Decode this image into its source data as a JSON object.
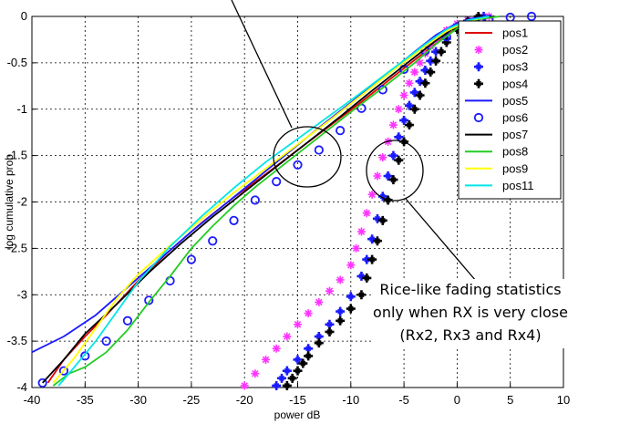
{
  "chart_data": {
    "type": "line",
    "xlabel": "power dB",
    "ylabel": "log cumulative prob",
    "xlim": [
      -40,
      10
    ],
    "ylim": [
      -4,
      0
    ],
    "xticks": [
      "-40",
      "-35",
      "-30",
      "-25",
      "-20",
      "-15",
      "-10",
      "-5",
      "0",
      "5",
      "10"
    ],
    "yticks": [
      "0",
      "-0.5",
      "-1",
      "-1.5",
      "-2",
      "-2.5",
      "-3",
      "-3.5",
      "-4"
    ],
    "grid": true,
    "legend_position": "top-right",
    "series": [
      {
        "name": "pos1",
        "style": "line",
        "marker": "",
        "color": "#e00000",
        "x": [
          -38.5,
          -37,
          -35,
          -33,
          -30,
          -27,
          -24,
          -21,
          -18,
          -15,
          -12,
          -9,
          -6,
          -3,
          -1,
          1,
          2.5,
          3.5
        ],
        "y": [
          -3.95,
          -3.7,
          -3.45,
          -3.22,
          -2.85,
          -2.52,
          -2.22,
          -1.95,
          -1.7,
          -1.44,
          -1.18,
          -0.92,
          -0.65,
          -0.38,
          -0.2,
          -0.06,
          -0.02,
          0
        ]
      },
      {
        "name": "pos2",
        "style": "marker",
        "marker": "*",
        "color": "#ff33ff",
        "x": [
          -20,
          -19,
          -18,
          -17,
          -16,
          -15,
          -14,
          -13,
          -12,
          -11,
          -10,
          -9.5,
          -9,
          -8.5,
          -8,
          -7.5,
          -7,
          -6.5,
          -6,
          -5.5,
          -5,
          -4.5,
          -4,
          -3.5,
          -3,
          -2.5,
          -2,
          -1,
          0,
          1,
          2,
          3
        ],
        "y": [
          -3.98,
          -3.85,
          -3.7,
          -3.58,
          -3.45,
          -3.32,
          -3.2,
          -3.08,
          -2.96,
          -2.84,
          -2.68,
          -2.5,
          -2.32,
          -2.12,
          -1.92,
          -1.72,
          -1.52,
          -1.35,
          -1.17,
          -1.0,
          -0.85,
          -0.72,
          -0.6,
          -0.5,
          -0.4,
          -0.32,
          -0.25,
          -0.15,
          -0.08,
          -0.04,
          -0.01,
          0
        ]
      },
      {
        "name": "pos3",
        "style": "marker",
        "marker": "+",
        "color": "#1a1aff",
        "x": [
          -17,
          -16.5,
          -16,
          -15,
          -14,
          -13,
          -12,
          -11,
          -10,
          -9,
          -8.5,
          -8,
          -7.5,
          -7,
          -6.5,
          -6,
          -5.5,
          -5,
          -4.5,
          -4,
          -3.5,
          -3,
          -2.5,
          -2,
          -1,
          0,
          1,
          2.5
        ],
        "y": [
          -3.98,
          -3.9,
          -3.82,
          -3.7,
          -3.58,
          -3.45,
          -3.32,
          -3.18,
          -3.02,
          -2.8,
          -2.62,
          -2.4,
          -2.18,
          -1.94,
          -1.72,
          -1.5,
          -1.3,
          -1.12,
          -0.96,
          -0.82,
          -0.7,
          -0.58,
          -0.48,
          -0.38,
          -0.24,
          -0.12,
          -0.05,
          0
        ]
      },
      {
        "name": "pos4",
        "style": "marker",
        "marker": "+",
        "color": "#000000",
        "x": [
          -16,
          -15.5,
          -15,
          -14.5,
          -14,
          -13,
          -12,
          -11,
          -10,
          -9,
          -8.5,
          -8,
          -7.5,
          -7,
          -6.5,
          -6,
          -5.5,
          -5,
          -4.5,
          -4,
          -3.5,
          -3,
          -2.5,
          -2,
          -1.5,
          -1,
          0,
          1,
          2
        ],
        "y": [
          -3.98,
          -3.9,
          -3.82,
          -3.74,
          -3.66,
          -3.52,
          -3.4,
          -3.28,
          -3.15,
          -3.0,
          -2.82,
          -2.62,
          -2.42,
          -2.2,
          -1.98,
          -1.76,
          -1.55,
          -1.35,
          -1.17,
          -1.0,
          -0.85,
          -0.72,
          -0.6,
          -0.48,
          -0.38,
          -0.28,
          -0.14,
          -0.05,
          0
        ]
      },
      {
        "name": "pos5",
        "style": "line",
        "marker": "",
        "color": "#1a1aff",
        "x": [
          -40,
          -37,
          -34,
          -31,
          -28,
          -25,
          -22,
          -19,
          -16,
          -13,
          -10,
          -7,
          -4,
          -2,
          0,
          1.5,
          3
        ],
        "y": [
          -3.62,
          -3.45,
          -3.22,
          -2.92,
          -2.62,
          -2.32,
          -2.04,
          -1.76,
          -1.48,
          -1.2,
          -0.93,
          -0.66,
          -0.38,
          -0.2,
          -0.07,
          -0.02,
          0
        ]
      },
      {
        "name": "pos6",
        "style": "marker",
        "marker": "o",
        "color": "#1a1aff",
        "x": [
          -39,
          -37,
          -35,
          -33,
          -31,
          -29,
          -27,
          -25,
          -23,
          -21,
          -19,
          -17,
          -15,
          -13,
          -11,
          -9,
          -7,
          -5,
          -3,
          -1,
          1,
          3,
          5,
          7
        ],
        "y": [
          -3.95,
          -3.82,
          -3.66,
          -3.5,
          -3.28,
          -3.06,
          -2.85,
          -2.62,
          -2.42,
          -2.2,
          -1.98,
          -1.78,
          -1.6,
          -1.44,
          -1.23,
          -0.99,
          -0.79,
          -0.57,
          -0.37,
          -0.22,
          -0.1,
          -0.03,
          -0.01,
          0
        ]
      },
      {
        "name": "pos7",
        "style": "line",
        "marker": "",
        "color": "#000000",
        "x": [
          -39,
          -37,
          -35,
          -32,
          -29,
          -26,
          -23,
          -20,
          -17,
          -14,
          -11,
          -8,
          -5,
          -2,
          0,
          2,
          3.5
        ],
        "y": [
          -3.95,
          -3.7,
          -3.42,
          -3.1,
          -2.76,
          -2.45,
          -2.16,
          -1.89,
          -1.62,
          -1.35,
          -1.08,
          -0.8,
          -0.53,
          -0.26,
          -0.1,
          -0.02,
          0
        ]
      },
      {
        "name": "pos8",
        "style": "line",
        "marker": "",
        "color": "#22cc22",
        "x": [
          -38,
          -36.5,
          -35,
          -33,
          -31,
          -29,
          -27,
          -25,
          -23,
          -21,
          -19,
          -16,
          -13,
          -10,
          -7,
          -4,
          -2,
          0,
          2,
          4
        ],
        "y": [
          -3.98,
          -3.85,
          -3.78,
          -3.62,
          -3.38,
          -3.08,
          -2.8,
          -2.5,
          -2.26,
          -2.04,
          -1.84,
          -1.57,
          -1.3,
          -1.03,
          -0.77,
          -0.5,
          -0.3,
          -0.13,
          -0.03,
          0
        ]
      },
      {
        "name": "pos9",
        "style": "line",
        "marker": "",
        "color": "#ffff00",
        "x": [
          -38,
          -36,
          -34,
          -32,
          -30,
          -27,
          -24,
          -21,
          -18,
          -15,
          -12,
          -9,
          -6,
          -3,
          -1,
          1,
          3
        ],
        "y": [
          -3.95,
          -3.68,
          -3.36,
          -3.04,
          -2.78,
          -2.47,
          -2.18,
          -1.9,
          -1.64,
          -1.38,
          -1.12,
          -0.85,
          -0.58,
          -0.32,
          -0.16,
          -0.05,
          0
        ]
      },
      {
        "name": "pos11",
        "style": "line",
        "marker": "",
        "color": "#00e5e5",
        "x": [
          -37.5,
          -36,
          -34,
          -32,
          -30,
          -27,
          -24,
          -21,
          -18,
          -15,
          -12,
          -9,
          -6,
          -3,
          -1,
          1,
          3
        ],
        "y": [
          -3.98,
          -3.78,
          -3.5,
          -3.18,
          -2.86,
          -2.48,
          -2.15,
          -1.85,
          -1.57,
          -1.32,
          -1.07,
          -0.82,
          -0.56,
          -0.3,
          -0.14,
          -0.04,
          0
        ]
      }
    ],
    "annotations": {
      "lower_text": [
        "Rice-like fading statistics",
        "only when RX is very close",
        "(Rx2, Rx3 and Rx4)"
      ]
    }
  }
}
